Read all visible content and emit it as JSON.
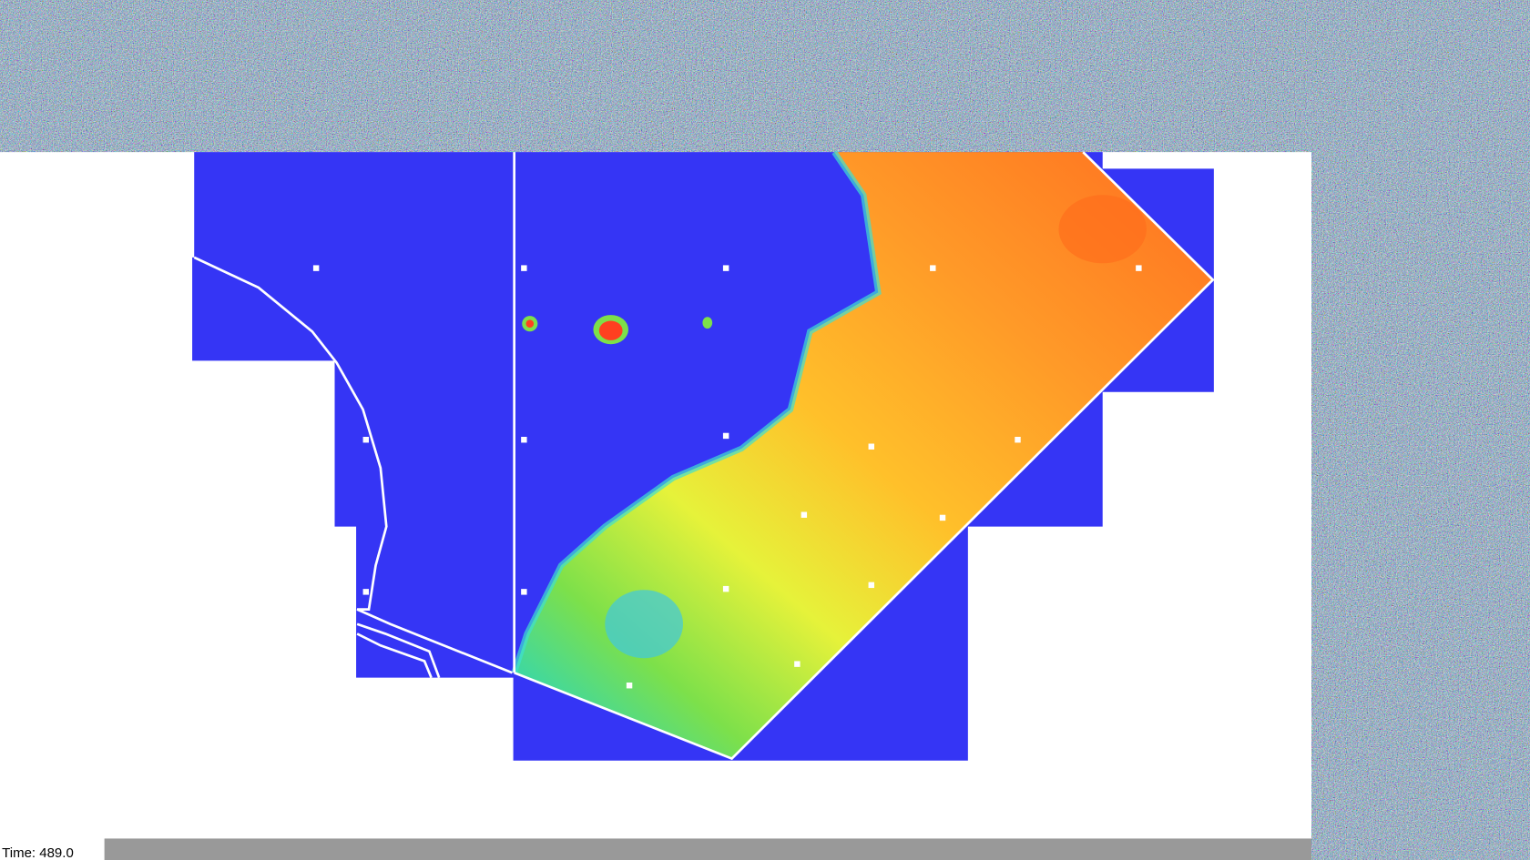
{
  "status_bar": {
    "time_label": "Time: 489.0"
  }
}
